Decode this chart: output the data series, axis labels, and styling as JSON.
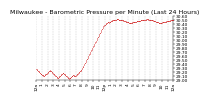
{
  "title": "Milwaukee - Barometric Pressure per Minute (Last 24 Hours)",
  "background_color": "#ffffff",
  "plot_bg_color": "#ffffff",
  "line_color": "#cc0000",
  "grid_color": "#aaaaaa",
  "title_fontsize": 4.5,
  "tick_fontsize": 3.2,
  "ylim": [
    29.0,
    30.6
  ],
  "yticks": [
    29.0,
    29.1,
    29.2,
    29.3,
    29.4,
    29.5,
    29.6,
    29.7,
    29.8,
    29.9,
    30.0,
    30.1,
    30.2,
    30.3,
    30.4,
    30.5,
    30.6
  ],
  "xtick_labels": [
    "12a",
    "1",
    "2",
    "3",
    "4",
    "5",
    "6",
    "7",
    "8",
    "9",
    "10",
    "11",
    "12p",
    "1",
    "2",
    "3",
    "4",
    "5",
    "6",
    "7",
    "8",
    "9",
    "10",
    "11",
    "12a"
  ],
  "y": [
    29.28,
    29.27,
    29.26,
    29.25,
    29.24,
    29.23,
    29.22,
    29.21,
    29.2,
    29.19,
    29.18,
    29.17,
    29.16,
    29.15,
    29.14,
    29.14,
    29.13,
    29.13,
    29.12,
    29.12,
    29.12,
    29.13,
    29.14,
    29.15,
    29.15,
    29.16,
    29.17,
    29.18,
    29.19,
    29.2,
    29.21,
    29.22,
    29.23,
    29.24,
    29.25,
    29.24,
    29.23,
    29.22,
    29.21,
    29.2,
    29.19,
    29.18,
    29.17,
    29.16,
    29.15,
    29.14,
    29.13,
    29.12,
    29.11,
    29.1,
    29.09,
    29.08,
    29.07,
    29.06,
    29.07,
    29.08,
    29.09,
    29.1,
    29.11,
    29.12,
    29.13,
    29.14,
    29.15,
    29.16,
    29.17,
    29.18,
    29.19,
    29.18,
    29.17,
    29.16,
    29.15,
    29.14,
    29.13,
    29.12,
    29.11,
    29.1,
    29.09,
    29.08,
    29.07,
    29.06,
    29.05,
    29.04,
    29.05,
    29.06,
    29.07,
    29.08,
    29.09,
    29.1,
    29.11,
    29.12,
    29.13,
    29.14,
    29.13,
    29.12,
    29.11,
    29.1,
    29.11,
    29.12,
    29.13,
    29.14,
    29.15,
    29.16,
    29.17,
    29.18,
    29.19,
    29.2,
    29.21,
    29.22,
    29.23,
    29.24,
    29.25,
    29.26,
    29.28,
    29.3,
    29.32,
    29.34,
    29.36,
    29.38,
    29.4,
    29.42,
    29.44,
    29.46,
    29.48,
    29.5,
    29.52,
    29.54,
    29.56,
    29.58,
    29.6,
    29.62,
    29.64,
    29.66,
    29.68,
    29.7,
    29.72,
    29.74,
    29.76,
    29.78,
    29.8,
    29.82,
    29.84,
    29.86,
    29.88,
    29.9,
    29.92,
    29.94,
    29.96,
    29.98,
    30.0,
    30.02,
    30.04,
    30.06,
    30.08,
    30.1,
    30.12,
    30.14,
    30.16,
    30.18,
    30.2,
    30.22,
    30.24,
    30.26,
    30.28,
    30.3,
    30.32,
    30.34,
    30.35,
    30.36,
    30.37,
    30.38,
    30.39,
    30.4,
    30.41,
    30.42,
    30.43,
    30.44,
    30.45,
    30.44,
    30.43,
    30.44,
    30.44,
    30.45,
    30.45,
    30.46,
    30.46,
    30.47,
    30.47,
    30.48,
    30.48,
    30.48,
    30.49,
    30.49,
    30.49,
    30.5,
    30.5,
    30.5,
    30.5,
    30.51,
    30.51,
    30.51,
    30.51,
    30.51,
    30.5,
    30.5,
    30.5,
    30.5,
    30.49,
    30.49,
    30.49,
    30.49,
    30.48,
    30.48,
    30.48,
    30.48,
    30.47,
    30.47,
    30.47,
    30.46,
    30.46,
    30.46,
    30.45,
    30.45,
    30.45,
    30.44,
    30.44,
    30.44,
    30.44,
    30.43,
    30.43,
    30.43,
    30.43,
    30.42,
    30.43,
    30.43,
    30.43,
    30.43,
    30.44,
    30.44,
    30.44,
    30.44,
    30.44,
    30.44,
    30.45,
    30.45,
    30.45,
    30.45,
    30.46,
    30.46,
    30.46,
    30.46,
    30.46,
    30.47,
    30.47,
    30.47,
    30.47,
    30.47,
    30.48,
    30.48,
    30.48,
    30.48,
    30.48,
    30.49,
    30.49,
    30.49,
    30.49,
    30.5,
    30.5,
    30.5,
    30.5,
    30.5,
    30.51,
    30.51,
    30.51,
    30.51,
    30.51,
    30.5,
    30.5,
    30.5,
    30.5,
    30.49,
    30.49,
    30.49,
    30.49,
    30.48,
    30.48,
    30.48,
    30.48,
    30.47,
    30.47,
    30.47,
    30.46,
    30.46,
    30.46,
    30.45,
    30.45,
    30.45,
    30.44,
    30.44,
    30.44,
    30.44,
    30.43,
    30.43,
    30.43,
    30.43,
    30.42,
    30.43,
    30.43,
    30.43,
    30.43,
    30.44,
    30.44,
    30.44,
    30.44,
    30.44,
    30.44,
    30.45,
    30.45,
    30.45,
    30.45,
    30.46,
    30.46,
    30.46,
    30.46,
    30.46,
    30.47,
    30.47,
    30.47,
    30.47,
    30.47,
    30.48,
    30.48,
    30.48,
    30.48,
    30.48,
    30.49,
    30.49,
    30.49
  ]
}
